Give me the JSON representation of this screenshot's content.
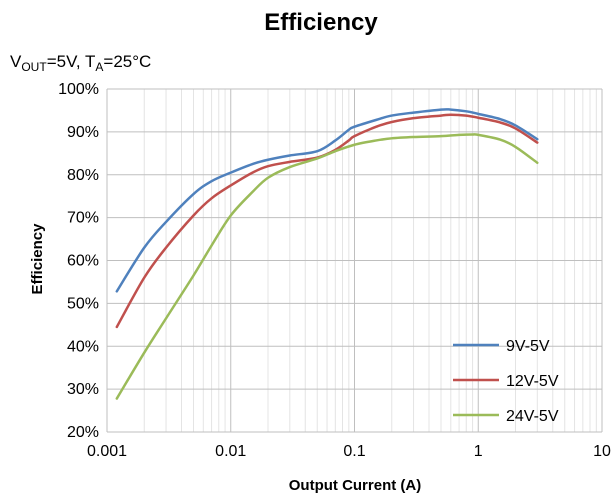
{
  "chart_data": {
    "type": "line",
    "title": "Efficiency",
    "subtitle": {
      "v_sym": "V",
      "v_sub": "OUT",
      "v_val": "=5V, ",
      "t_sym": "T",
      "t_sub": "A",
      "t_val": "=25°C"
    },
    "xlabel": "Output Current (A)",
    "ylabel": "Efficiency",
    "xscale": "log",
    "xlim": [
      0.001,
      10
    ],
    "ylim": [
      20,
      100
    ],
    "x_ticks": [
      0.001,
      0.01,
      0.1,
      1,
      10
    ],
    "x_tick_labels": [
      "0.001",
      "0.01",
      "0.1",
      "1",
      "10"
    ],
    "y_ticks": [
      20,
      30,
      40,
      50,
      60,
      70,
      80,
      90,
      100
    ],
    "y_tick_labels": [
      "20%",
      "30%",
      "40%",
      "50%",
      "60%",
      "70%",
      "80%",
      "90%",
      "100%"
    ],
    "grid": true,
    "legend_position": "bottom-right",
    "series": [
      {
        "name": "9V-5V",
        "color": "#4f81bd",
        "x": [
          0.0012,
          0.002,
          0.003,
          0.005,
          0.007,
          0.01,
          0.015,
          0.02,
          0.03,
          0.05,
          0.07,
          0.09,
          0.1,
          0.15,
          0.2,
          0.3,
          0.5,
          0.6,
          0.8,
          1,
          1.5,
          2,
          3
        ],
        "y": [
          52.8,
          63.0,
          69.0,
          75.5,
          78.5,
          80.5,
          82.5,
          83.5,
          84.5,
          85.5,
          88.0,
          90.5,
          91.2,
          92.8,
          93.8,
          94.5,
          95.2,
          95.2,
          94.8,
          94.2,
          93.0,
          91.5,
          88.3
        ]
      },
      {
        "name": "12V-5V",
        "color": "#c0504d",
        "x": [
          0.0012,
          0.002,
          0.003,
          0.005,
          0.007,
          0.01,
          0.015,
          0.02,
          0.03,
          0.05,
          0.07,
          0.09,
          0.1,
          0.15,
          0.2,
          0.3,
          0.5,
          0.6,
          0.8,
          1,
          1.5,
          2,
          3
        ],
        "y": [
          44.5,
          56.0,
          63.0,
          70.5,
          74.5,
          77.5,
          80.5,
          82.0,
          83.0,
          84.0,
          85.8,
          88.0,
          89.0,
          91.2,
          92.3,
          93.2,
          93.8,
          94.0,
          93.8,
          93.3,
          92.2,
          90.8,
          87.5
        ]
      },
      {
        "name": "24V-5V",
        "color": "#9bbb59",
        "x": [
          0.0012,
          0.002,
          0.003,
          0.005,
          0.007,
          0.01,
          0.015,
          0.02,
          0.03,
          0.05,
          0.07,
          0.1,
          0.15,
          0.2,
          0.3,
          0.5,
          0.7,
          0.9,
          1,
          1.5,
          2,
          3
        ],
        "y": [
          27.8,
          38.5,
          46.5,
          56.5,
          63.5,
          70.5,
          76.0,
          79.3,
          81.8,
          83.8,
          85.5,
          87.0,
          88.0,
          88.5,
          88.8,
          89.0,
          89.3,
          89.4,
          89.3,
          88.2,
          86.5,
          82.8
        ]
      }
    ]
  }
}
